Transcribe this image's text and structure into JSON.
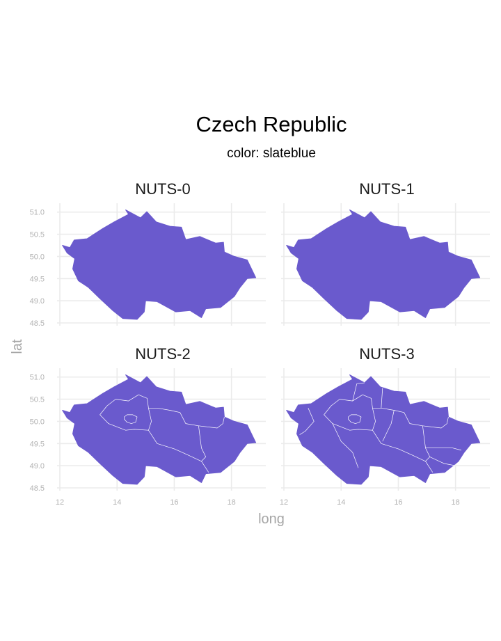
{
  "chart_data": {
    "type": "map",
    "title": "Czech Republic",
    "subtitle": "color: slateblue",
    "xlabel": "long",
    "ylabel": "lat",
    "fill_color": "#6a5acd",
    "xlim": [
      12.0,
      19.2
    ],
    "ylim": [
      48.5,
      51.2
    ],
    "x_ticks": [
      "12",
      "14",
      "16",
      "18"
    ],
    "y_ticks": [
      "48.5",
      "49.0",
      "49.5",
      "50.0",
      "50.5",
      "51.0"
    ],
    "panels": [
      {
        "label": "NUTS-0",
        "level": 0
      },
      {
        "label": "NUTS-1",
        "level": 1
      },
      {
        "label": "NUTS-2",
        "level": 2
      },
      {
        "label": "NUTS-3",
        "level": 3
      }
    ]
  }
}
